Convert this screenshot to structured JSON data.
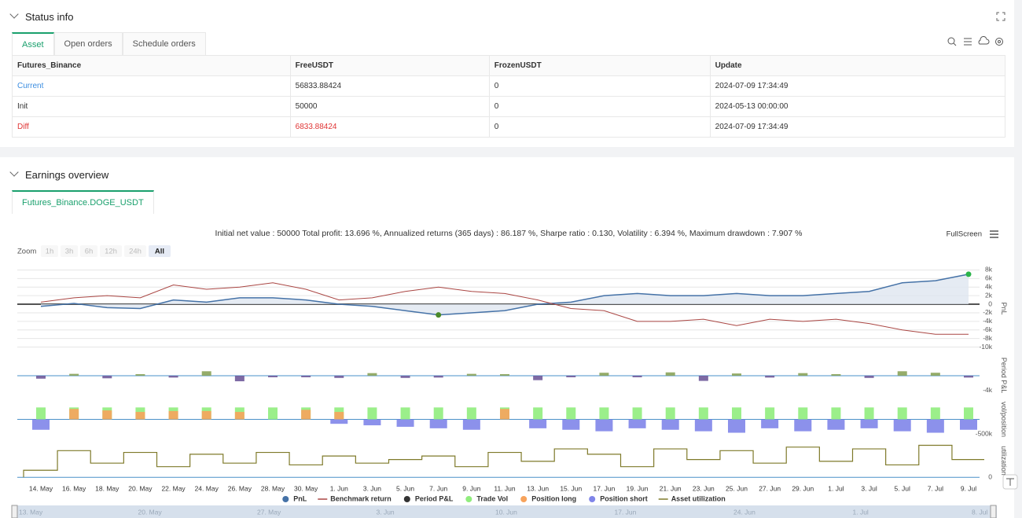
{
  "status": {
    "title": "Status info",
    "tabs": [
      "Asset",
      "Open orders",
      "Schedule orders"
    ],
    "table": {
      "header": [
        "Futures_Binance",
        "FreeUSDT",
        "FrozenUSDT",
        "Update"
      ],
      "rows": [
        [
          "Current",
          "56833.88424",
          "0",
          "2024-07-09 17:34:49"
        ],
        [
          "Init",
          "50000",
          "0",
          "2024-05-13 00:00:00"
        ],
        [
          "Diff",
          "6833.88424",
          "0",
          "2024-07-09 17:34:49"
        ]
      ]
    }
  },
  "earnings": {
    "title": "Earnings overview",
    "tab": "Futures_Binance.DOGE_USDT",
    "summary": "Initial net value : 50000 Total profit: 13.696 %, Annualized returns (365 days) : 86.187 %, Sharpe ratio : 0.130, Volatility : 6.394 %, Maximum drawdown : 7.907 %",
    "fullscreen": "FullScreen",
    "zoom": "Zoom",
    "zoom_buttons": [
      "1h",
      "3h",
      "6h",
      "12h",
      "24h",
      "All"
    ],
    "navigator": [
      "13. May",
      "20. May",
      "27. May",
      "3. Jun",
      "10. Jun",
      "17. Jun",
      "24. Jun",
      "1. Jul",
      "8. Jul"
    ]
  },
  "chart_data": [
    {
      "type": "line",
      "axis_label": "PnL",
      "ylim": [
        -11000,
        9000
      ],
      "grid": true,
      "yticks": [
        {
          "value": 8000,
          "label": "8k"
        },
        {
          "value": 6000,
          "label": "6k"
        },
        {
          "value": 4000,
          "label": "4k"
        },
        {
          "value": 2000,
          "label": "2k"
        },
        0,
        {
          "value": -2000,
          "label": "-2k"
        },
        {
          "value": -4000,
          "label": "-4k"
        },
        {
          "value": -6000,
          "label": "-6k"
        },
        {
          "value": -8000,
          "label": "-8k"
        },
        {
          "value": -10000,
          "label": "-10k"
        }
      ],
      "series": [
        {
          "name": "PnL",
          "color": "#4572a7",
          "fill": "#dfe6f0",
          "values": [
            -500,
            200,
            -800,
            -1000,
            1000,
            500,
            1500,
            1500,
            1000,
            0,
            -500,
            -1500,
            -2500,
            -2000,
            -1500,
            0,
            500,
            2000,
            2500,
            2000,
            2000,
            2500,
            2000,
            2000,
            2500,
            3000,
            5000,
            5500,
            7000
          ]
        },
        {
          "name": "Benchmark return",
          "color": "#aa4643",
          "values": [
            500,
            1500,
            2000,
            1500,
            4500,
            3500,
            4000,
            5000,
            3500,
            1000,
            1500,
            3000,
            4000,
            3000,
            2500,
            1000,
            -1000,
            -1500,
            -4000,
            -4000,
            -3500,
            -5000,
            -3500,
            -4000,
            -3500,
            -4500,
            -6000,
            -7000,
            -7000
          ]
        }
      ]
    },
    {
      "type": "bar",
      "axis_label": "Period P&L",
      "ylim": [
        -5300,
        5500
      ],
      "yticks": [
        {
          "value": -4000,
          "label": "-4k"
        }
      ],
      "series": [
        {
          "name": "Period P&L",
          "color": "#8aa35a",
          "negative_color": "#6f5a9a",
          "legend_color": "#333333",
          "values": [
            -800,
            500,
            -700,
            400,
            -500,
            1200,
            -1500,
            -300,
            -400,
            -600,
            700,
            -600,
            -500,
            500,
            300,
            -1200,
            -300,
            800,
            -400,
            900,
            -1400,
            600,
            -500,
            700,
            300,
            -600,
            1200,
            800,
            -500
          ]
        }
      ]
    },
    {
      "type": "bar",
      "axis_label": "vol/position",
      "ylim": [
        -700000,
        700000
      ],
      "yticks": [
        {
          "value": -500000,
          "label": "-500k"
        }
      ],
      "series": [
        {
          "name": "Trade Vol",
          "color": "#90ed7d",
          "values": [
            400000,
            400000,
            400000,
            400000,
            400000,
            400000,
            400000,
            400000,
            400000,
            400000,
            400000,
            400000,
            400000,
            400000,
            400000,
            400000,
            400000,
            400000,
            400000,
            400000,
            400000,
            400000,
            400000,
            400000,
            400000,
            400000,
            400000,
            400000,
            400000
          ]
        },
        {
          "name": "Position long",
          "color": "#f7a35c",
          "values": [
            0,
            350000,
            300000,
            250000,
            280000,
            280000,
            250000,
            0,
            320000,
            250000,
            0,
            0,
            0,
            0,
            350000,
            0,
            0,
            0,
            0,
            0,
            0,
            0,
            0,
            0,
            0,
            0,
            0,
            0,
            0
          ]
        },
        {
          "name": "Position short",
          "color": "#8085e9",
          "values": [
            -350000,
            0,
            0,
            0,
            0,
            0,
            0,
            0,
            0,
            -150000,
            -200000,
            -250000,
            -300000,
            -350000,
            0,
            -300000,
            -350000,
            -400000,
            -300000,
            -350000,
            -400000,
            -450000,
            -300000,
            -400000,
            -350000,
            -300000,
            -400000,
            -450000,
            -350000
          ]
        }
      ]
    },
    {
      "type": "step",
      "axis_label": "utilization",
      "ylim": [
        -0.06,
        1
      ],
      "yticks": [
        0
      ],
      "categories": [
        "14. May",
        "16. May",
        "18. May",
        "20. May",
        "22. May",
        "24. May",
        "26. May",
        "28. May",
        "30. May",
        "1. Jun",
        "3. Jun",
        "5. Jun",
        "7. Jun",
        "9. Jun",
        "11. Jun",
        "13. Jun",
        "15. Jun",
        "17. Jun",
        "19. Jun",
        "21. Jun",
        "23. Jun",
        "25. Jun",
        "27. Jun",
        "29. Jun",
        "1. Jul",
        "3. Jul",
        "5. Jul",
        "7. Jul",
        "9. Jul"
      ],
      "series": [
        {
          "name": "Asset utilization",
          "color": "#7f7a2a",
          "values": [
            0.2,
            0.75,
            0.4,
            0.7,
            0.3,
            0.65,
            0.4,
            0.7,
            0.35,
            0.6,
            0.4,
            0.5,
            0.6,
            0.3,
            0.7,
            0.45,
            0.8,
            0.65,
            0.3,
            0.8,
            0.5,
            0.75,
            0.4,
            0.85,
            0.45,
            0.8,
            0.35,
            0.9,
            0.5
          ]
        }
      ]
    }
  ]
}
